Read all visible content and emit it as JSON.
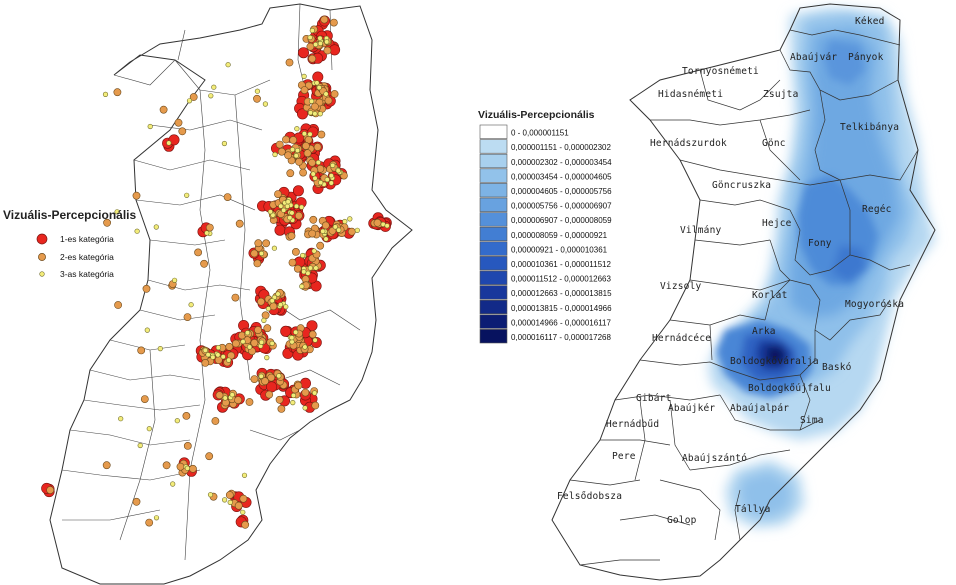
{
  "left_map": {
    "legend": {
      "title": "Vizuális-Percepcionális",
      "items": [
        {
          "label": "1-es kategória",
          "color": "#e8261f",
          "size": "large"
        },
        {
          "label": "2-es kategória",
          "color": "#e59a4c",
          "size": "medium"
        },
        {
          "label": "3-as kategória",
          "color": "#f3ec7a",
          "size": "small"
        }
      ]
    }
  },
  "right_legend": {
    "title": "Vizuális-Percepcionális",
    "classes": [
      {
        "label": "0 - 0,000001151",
        "color": "#ffffff"
      },
      {
        "label": "0,000001151 - 0,000002302",
        "color": "#bcdcf2"
      },
      {
        "label": "0,000002302 - 0,000003454",
        "color": "#a8d0ee"
      },
      {
        "label": "0,000003454 - 0,000004605",
        "color": "#92c2ea"
      },
      {
        "label": "0,000004605 - 0,000005756",
        "color": "#7db3e5"
      },
      {
        "label": "0,000005756 - 0,000006907",
        "color": "#68a2e0"
      },
      {
        "label": "0,000006907 - 0,000008059",
        "color": "#5490da"
      },
      {
        "label": "0,000008059 - 0,00000921",
        "color": "#427ed3"
      },
      {
        "label": "0,00000921 - 0,000010361",
        "color": "#336bcb"
      },
      {
        "label": "0,000010361 - 0,000011512",
        "color": "#2758be"
      },
      {
        "label": "0,000011512 - 0,000012663",
        "color": "#1f47ae"
      },
      {
        "label": "0,000012663 - 0,000013815",
        "color": "#18379c"
      },
      {
        "label": "0,000013815 - 0,000014966",
        "color": "#122a88"
      },
      {
        "label": "0,000014966 - 0,000016117",
        "color": "#0c1d74"
      },
      {
        "label": "0,000016117 - 0,000017268",
        "color": "#07125f"
      }
    ]
  },
  "right_map": {
    "settlements": [
      "Kéked",
      "Abaújvár",
      "Pányok",
      "Tornyosnémeti",
      "Hidasnémeti",
      "Zsujta",
      "Telkibánya",
      "Hernádszurdok",
      "Gönc",
      "Göncruszka",
      "Regéc",
      "Hejce",
      "Vilmány",
      "Fony",
      "Vizsoly",
      "Korlát",
      "Mogyoróska",
      "Hernádcéce",
      "Arka",
      "Boldogkőváralja",
      "Baskó",
      "Boldogkőújfalu",
      "Gibárt",
      "Abaújkér",
      "Abaújalpár",
      "Sima",
      "Hernádbűd",
      "Pere",
      "Abaújszántó",
      "Felsődobsza",
      "Tállya",
      "Golop"
    ]
  }
}
